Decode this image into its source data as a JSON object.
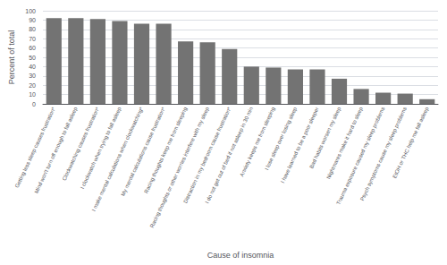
{
  "chart_data": {
    "type": "bar",
    "categories": [
      "Getting less sleep causes frustration*",
      "Mind won't turn off enough to fall asleep",
      "Clockwatching causes frustration*",
      "I clockwatch when trying to fall asleep",
      "I make mental calculations when clockwatching*",
      "My mental calculations cause frustration*",
      "Racing thoughts keep me from sleeping",
      "Racing thoughts or other worries interfere with my sleep",
      "Distraction in my bedroom cause frustration*",
      "I do not get out of bed if not asleep in 30 min",
      "Anxiety keeps me from sleeping",
      "I lose sleep over losing sleep",
      "I have learned to be a poor sleeper",
      "Bad habits worsen my sleep",
      "Nightmares make it hard to sleep",
      "Trauma exposure caused my sleep problems",
      "Psych symptoms cause my sleep problems",
      "EtOH or THC help me fall asleep"
    ],
    "values": [
      92,
      92,
      91,
      89,
      86,
      86,
      67,
      66,
      59,
      40,
      39,
      37,
      37,
      27,
      16,
      12,
      11,
      5
    ],
    "color": "#737373",
    "xlabel": "Cause of insomnia",
    "ylabel": "Percent of total",
    "ylim": [
      0,
      100
    ],
    "yticks": [
      0,
      10,
      20,
      30,
      40,
      50,
      60,
      70,
      80,
      90,
      100
    ],
    "grid": true
  }
}
